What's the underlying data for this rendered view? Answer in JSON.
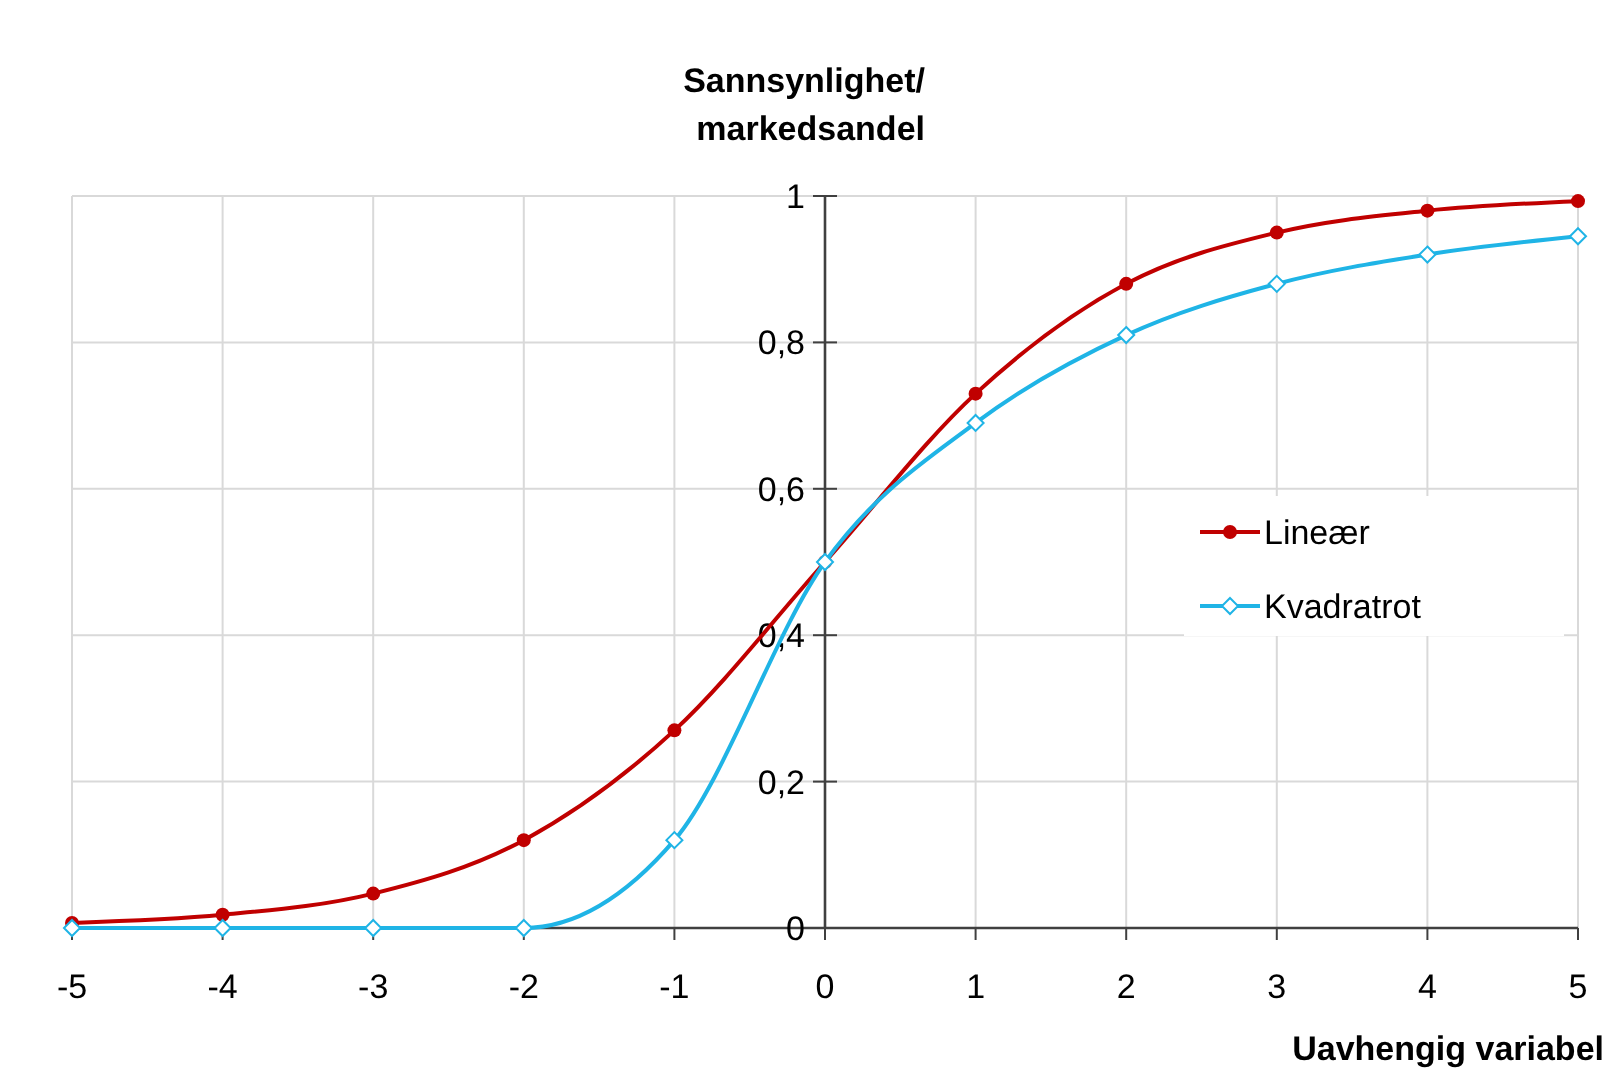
{
  "chart_data": {
    "type": "line",
    "ylabel": "Sannsynlighet/\nmarkedsandel",
    "xlabel": "Uavhengig variabel",
    "x": [
      -5,
      -4,
      -3,
      -2,
      -1,
      0,
      1,
      2,
      3,
      4,
      5
    ],
    "series": [
      {
        "name": "Lineær",
        "color": "#c00000",
        "marker": "circle",
        "values": [
          0.007,
          0.018,
          0.047,
          0.12,
          0.27,
          0.5,
          0.73,
          0.88,
          0.95,
          0.98,
          0.993
        ]
      },
      {
        "name": "Kvadratrot",
        "color": "#1fb4e6",
        "marker": "diamond",
        "values": [
          0,
          0,
          0,
          0,
          0.12,
          0.5,
          0.69,
          0.81,
          0.88,
          0.92,
          0.945
        ]
      }
    ],
    "xlim": [
      -5,
      5
    ],
    "xticks": [
      -5,
      -4,
      -3,
      -2,
      -1,
      0,
      1,
      2,
      3,
      4,
      5
    ],
    "ylim": [
      0,
      1
    ],
    "yticks": [
      0,
      {
        "value": 0.2,
        "label": "0,2"
      },
      {
        "value": 0.4,
        "label": "0,4"
      },
      {
        "value": 0.6,
        "label": "0,6"
      },
      {
        "value": 0.8,
        "label": "0,8"
      },
      1
    ],
    "grid": true,
    "legend": "right",
    "line_style": "solid"
  }
}
